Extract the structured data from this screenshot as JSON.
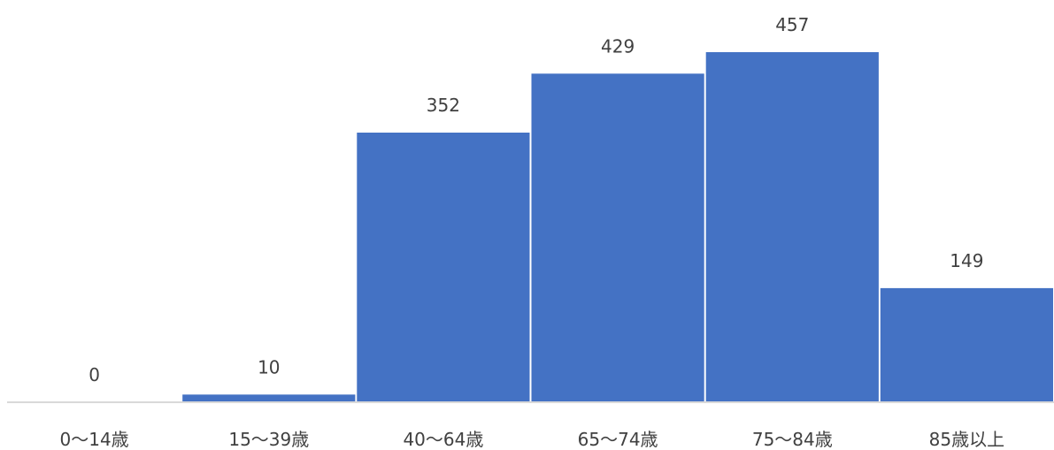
{
  "chart_data": {
    "type": "bar",
    "categories": [
      "0～14歳",
      "15～39歳",
      "40～64歳",
      "65～74歳",
      "75～84歳",
      "85歳以上"
    ],
    "values": [
      0,
      10,
      352,
      429,
      457,
      149
    ],
    "bar_color": "#4472C4",
    "axis_color": "#D9D9D9",
    "text_color": "#404040",
    "ylim": [
      0,
      500
    ],
    "grid": false,
    "legend": "none",
    "xlabel": "",
    "ylabel": "",
    "title": ""
  }
}
